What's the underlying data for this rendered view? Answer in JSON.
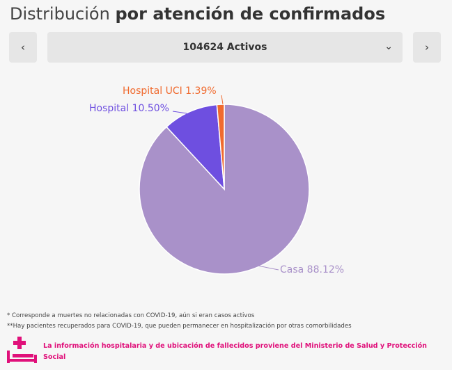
{
  "header": {
    "title_regular": "Distribución",
    "title_bold": "por atención de confirmados"
  },
  "selector": {
    "prev_icon": "chevron-left-icon",
    "next_icon": "chevron-right-icon",
    "value": "104624 Activos",
    "dropdown_icon": "chevron-down-icon"
  },
  "chart_data": {
    "type": "pie",
    "title": "",
    "slices": [
      {
        "label": "Casa 88.12%",
        "value": 88.12,
        "color": "#a991c9"
      },
      {
        "label": "Hospital 10.50%",
        "value": 10.5,
        "color": "#6e4fe0"
      },
      {
        "label": "Hospital UCI 1.39%",
        "value": 1.39,
        "color": "#f06a2e"
      }
    ]
  },
  "notes": [
    "* Corresponde a muertes no relacionadas con COVID-19, aún si eran casos activos",
    "**Hay pacientes recuperados para COVID-19, que pueden permanecer en hospitalización por otras comorbilidades"
  ],
  "source": {
    "icon": "hospital-bed-icon",
    "text": "La información hospitalaria y de ubicación de fallecidos proviene del Ministerio de Salud y Protección Social",
    "color": "#e0107a"
  }
}
